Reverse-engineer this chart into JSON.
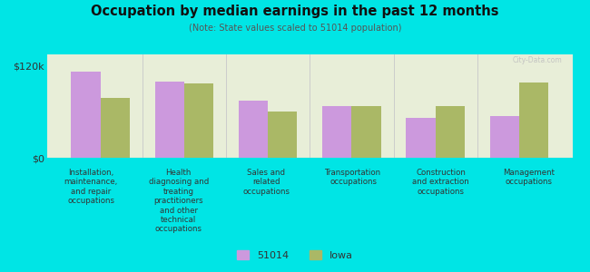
{
  "title": "Occupation by median earnings in the past 12 months",
  "subtitle": "(Note: State values scaled to 51014 population)",
  "background_color": "#00e5e5",
  "plot_bg_color": "#e8eed8",
  "categories": [
    "Installation,\nmaintenance,\nand repair\noccupations",
    "Health\ndiagnosing and\ntreating\npractitioners\nand other\ntechnical\noccupations",
    "Sales and\nrelated\noccupations",
    "Transportation\noccupations",
    "Construction\nand extraction\noccupations",
    "Management\noccupations"
  ],
  "values_51014": [
    113000,
    100000,
    75000,
    68000,
    52000,
    55000
  ],
  "values_iowa": [
    78000,
    97000,
    60000,
    67000,
    68000,
    98000
  ],
  "color_51014": "#cc99dd",
  "color_iowa": "#aab866",
  "ylim": [
    0,
    135000
  ],
  "ytick_labels": [
    "$0",
    "$120k"
  ],
  "ytick_values": [
    0,
    120000
  ],
  "legend_51014": "51014",
  "legend_iowa": "Iowa",
  "bar_width": 0.35
}
